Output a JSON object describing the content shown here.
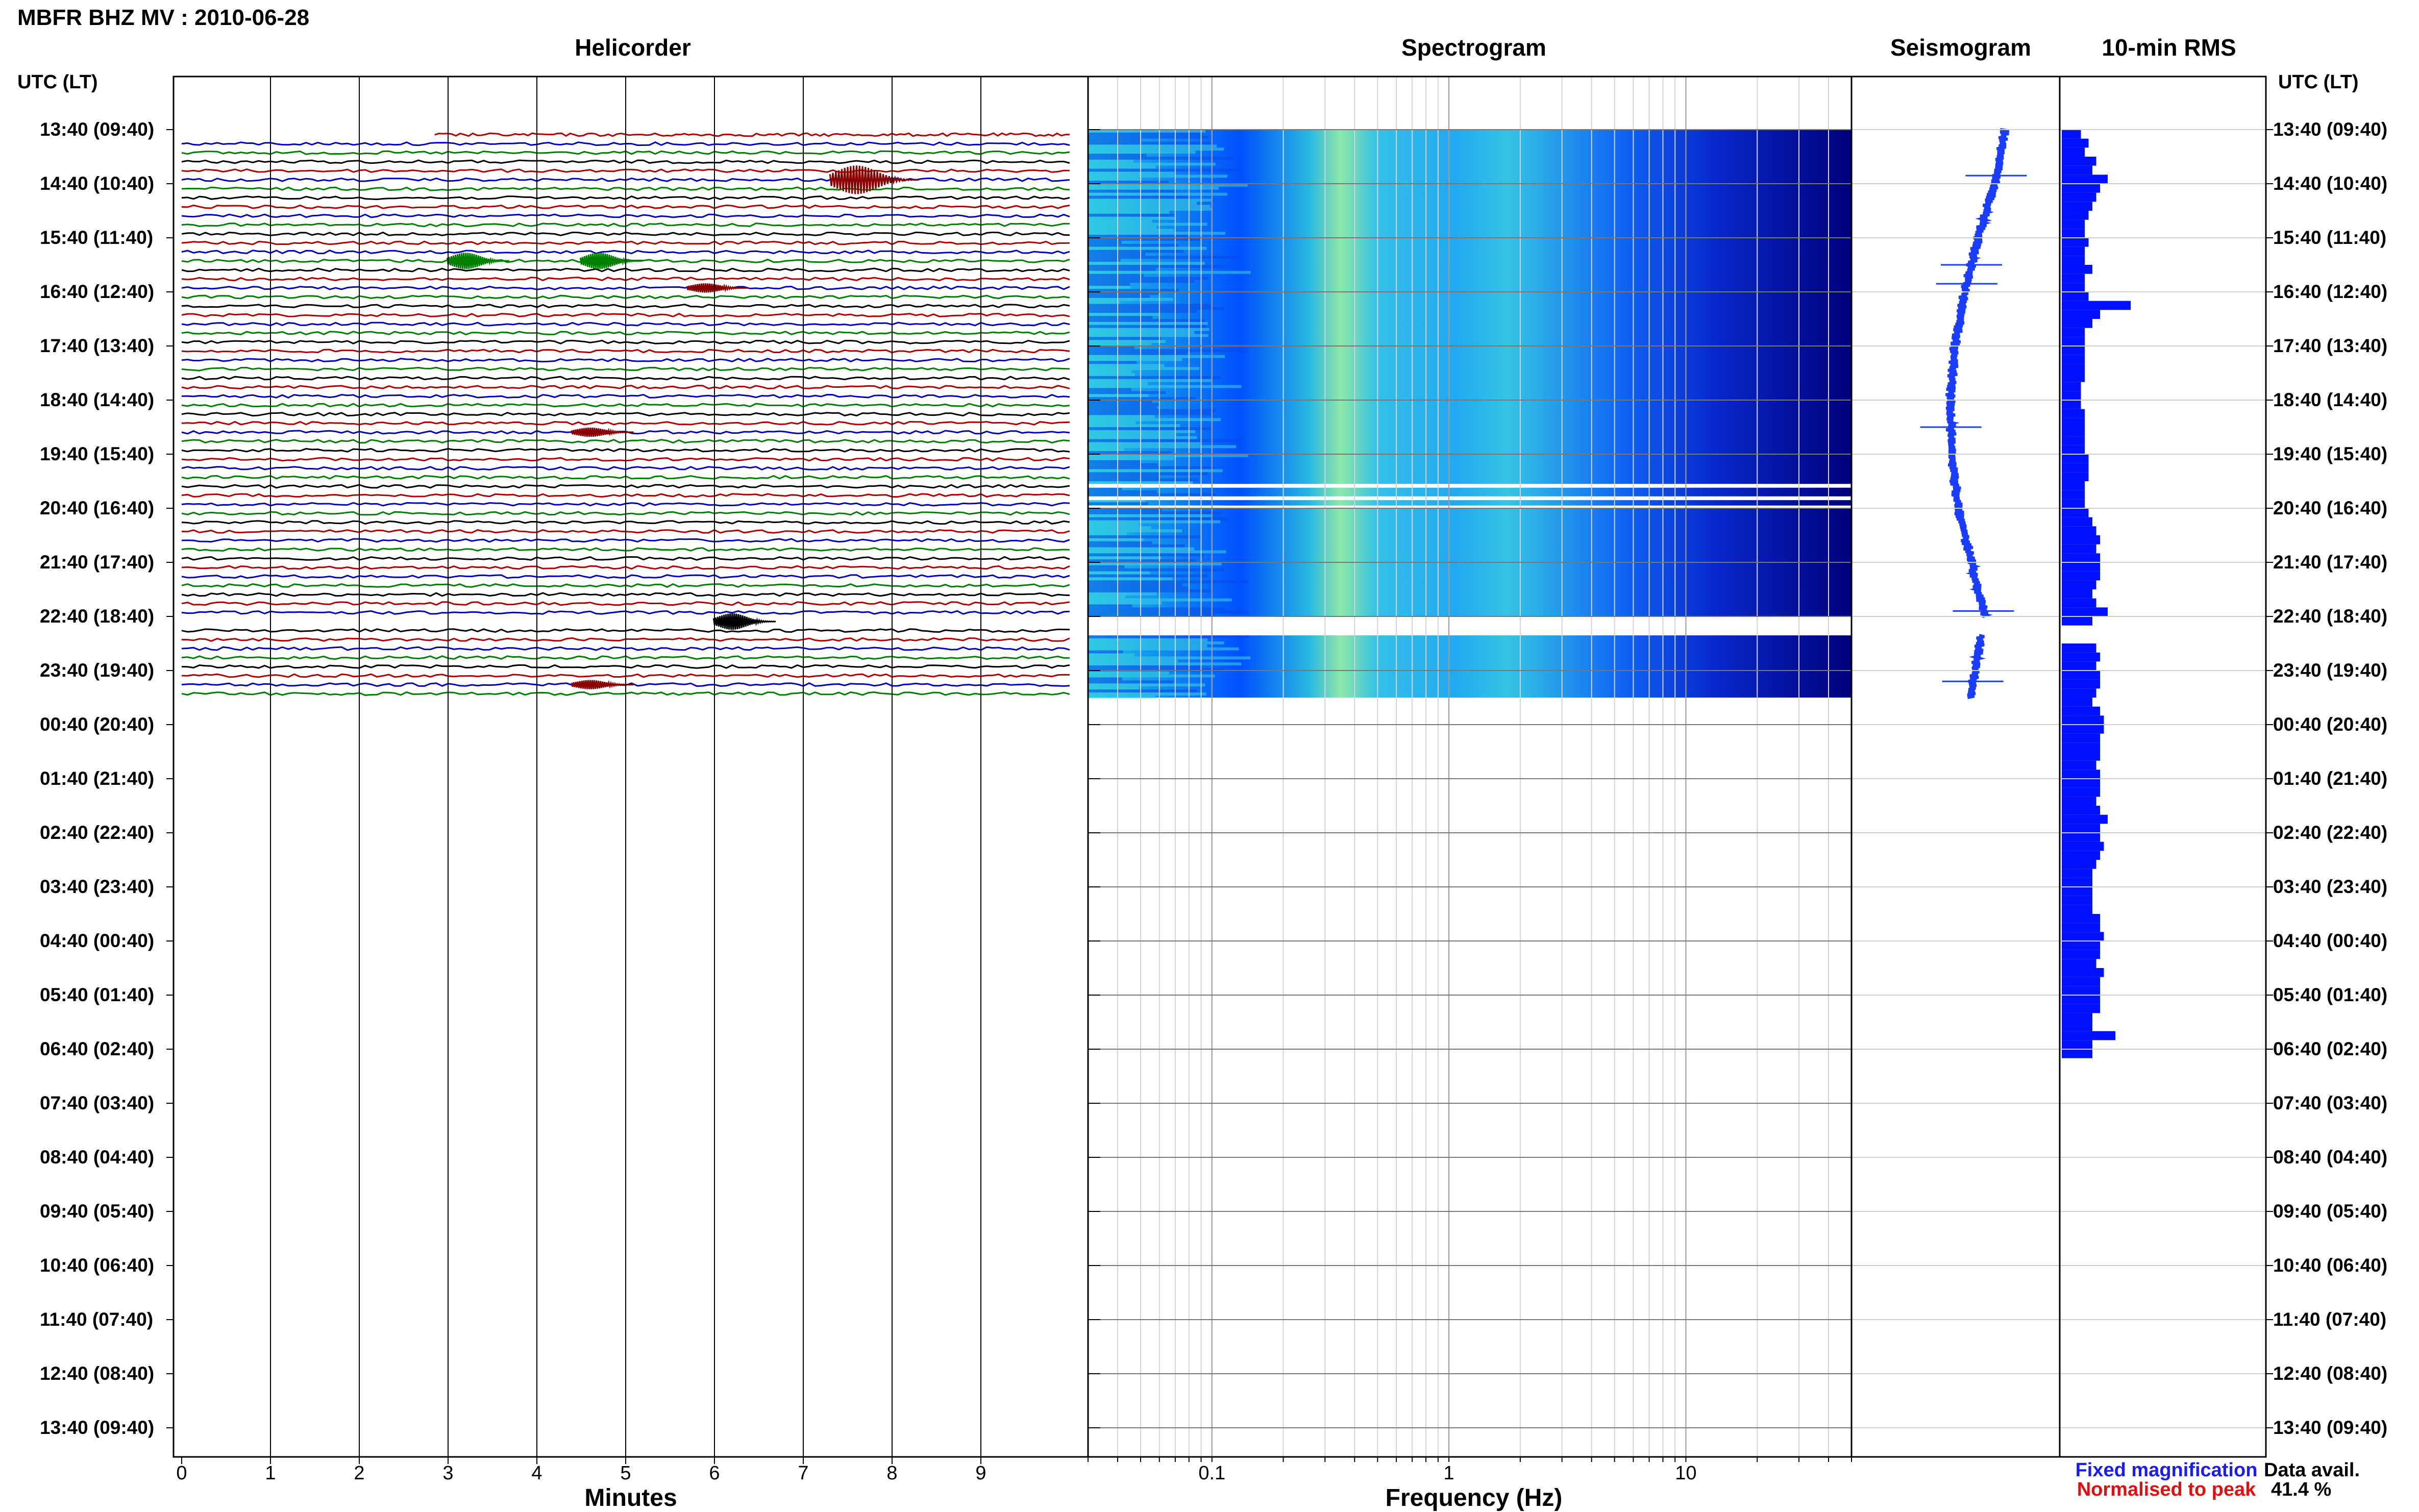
{
  "header": {
    "station_title": "MBFR BHZ MV : 2010-06-28",
    "panel_titles": {
      "helicorder": "Helicorder",
      "spectrogram": "Spectrogram",
      "seismogram": "Seismogram",
      "rms": "10-min RMS"
    },
    "utc_label_left": "UTC (LT)",
    "utc_label_right": "UTC (LT)"
  },
  "time_labels": [
    "13:40 (09:40)",
    "14:40 (10:40)",
    "15:40 (11:40)",
    "16:40 (12:40)",
    "17:40 (13:40)",
    "18:40 (14:40)",
    "19:40 (15:40)",
    "20:40 (16:40)",
    "21:40 (17:40)",
    "22:40 (18:40)",
    "23:40 (19:40)",
    "00:40 (20:40)",
    "01:40 (21:40)",
    "02:40 (22:40)",
    "03:40 (23:40)",
    "04:40 (00:40)",
    "05:40 (01:40)",
    "06:40 (02:40)",
    "07:40 (03:40)",
    "08:40 (04:40)",
    "09:40 (05:40)",
    "10:40 (06:40)",
    "11:40 (07:40)",
    "12:40 (08:40)",
    "13:40 (09:40)"
  ],
  "chart_data": [
    {
      "type": "line",
      "panel": "Helicorder",
      "title": "Helicorder",
      "xlabel": "Minutes",
      "x_ticks": [
        "0",
        "1",
        "2",
        "3",
        "4",
        "5",
        "6",
        "7",
        "8",
        "9"
      ],
      "xlim": [
        0,
        10
      ],
      "trace_colors": [
        "#000000",
        "#b00000",
        "#0000c0",
        "#008000"
      ],
      "traces_per_hour": 6,
      "hours_with_data": 10.5,
      "events": [
        {
          "hour": 0.85,
          "minute": 7.6,
          "amplitude": "large",
          "color": "#8b0000"
        },
        {
          "hour": 2.35,
          "minute": 3.2,
          "amplitude": "medium",
          "color": "#008000"
        },
        {
          "hour": 2.35,
          "minute": 4.7,
          "amplitude": "medium",
          "color": "#008000"
        },
        {
          "hour": 2.85,
          "minute": 5.9,
          "amplitude": "small",
          "color": "#8b0000"
        },
        {
          "hour": 5.45,
          "minute": 4.6,
          "amplitude": "small",
          "color": "#8b0000"
        },
        {
          "hour": 9.0,
          "minute": 6.2,
          "amplitude": "medium",
          "color": "#000000"
        },
        {
          "hour": 10.1,
          "minute": 4.6,
          "amplitude": "small",
          "color": "#8b0000"
        }
      ]
    },
    {
      "type": "heatmap",
      "panel": "Spectrogram",
      "title": "Spectrogram",
      "xlabel": "Frequency (Hz)",
      "x_ticks": [
        "0.1",
        "1",
        "10"
      ],
      "x_scale": "log",
      "xlim": [
        0.03,
        50
      ],
      "colormap": [
        "#00007a",
        "#0010c8",
        "#0060ff",
        "#20c8e8",
        "#a0f0a0"
      ],
      "data_hours": [
        [
          0,
          9.0
        ],
        [
          9.35,
          10.5
        ]
      ],
      "gap_hours": [
        [
          6.55,
          6.62
        ],
        [
          6.78,
          6.85
        ],
        [
          6.95,
          7.0
        ]
      ]
    },
    {
      "type": "line",
      "panel": "Seismogram",
      "title": "Seismogram",
      "color": "#1a3cff",
      "data_hours": [
        [
          0,
          9.0
        ],
        [
          9.35,
          10.5
        ]
      ],
      "baseline_drift": [
        0.6,
        0.45,
        0.2,
        0.0,
        -0.15,
        -0.22,
        -0.2,
        -0.1,
        0.1,
        0.3,
        0.15
      ],
      "spikes_hour": [
        0.85,
        2.5,
        2.85,
        5.5,
        8.9,
        10.2
      ]
    },
    {
      "type": "bar",
      "panel": "10-min RMS",
      "title": "10-min RMS",
      "color": "#0010ff",
      "values": [
        0.25,
        0.35,
        0.3,
        0.45,
        0.4,
        0.6,
        0.5,
        0.45,
        0.4,
        0.35,
        0.3,
        0.3,
        0.35,
        0.3,
        0.3,
        0.4,
        0.3,
        0.3,
        0.35,
        0.9,
        0.5,
        0.4,
        0.3,
        0.3,
        0.3,
        0.3,
        0.3,
        0.3,
        0.25,
        0.25,
        0.25,
        0.3,
        0.3,
        0.3,
        0.3,
        0.3,
        0.35,
        0.35,
        0.35,
        0.3,
        0.3,
        0.3,
        0.35,
        0.4,
        0.45,
        0.5,
        0.45,
        0.5,
        0.5,
        0.5,
        0.45,
        0.4,
        0.45,
        0.6,
        0.4,
        0.6,
        0.55,
        0.45,
        0.5,
        0.45,
        0.5,
        0.5,
        0.45,
        0.4,
        0.5,
        0.55,
        0.55,
        0.5,
        0.5,
        0.5,
        0.45,
        0.5,
        0.5,
        0.5,
        0.45,
        0.5,
        0.6,
        0.5,
        0.5,
        0.55,
        0.5,
        0.45,
        0.4,
        0.4,
        0.4,
        0.4,
        0.4,
        0.5,
        0.5,
        0.55,
        0.5,
        0.5,
        0.45,
        0.55,
        0.5,
        0.5,
        0.5,
        0.5,
        0.4,
        0.4,
        0.7,
        0.4,
        0.4
      ],
      "missing_bins": [
        55,
        56
      ]
    }
  ],
  "footer": {
    "legend_fixed": "Fixed magnification",
    "legend_normalised": "Normalised to peak",
    "legend_fixed_color": "#1a1aff",
    "legend_normalised_color": "#e01010",
    "data_avail_label": "Data avail.",
    "data_avail_value": "41.4 %"
  }
}
